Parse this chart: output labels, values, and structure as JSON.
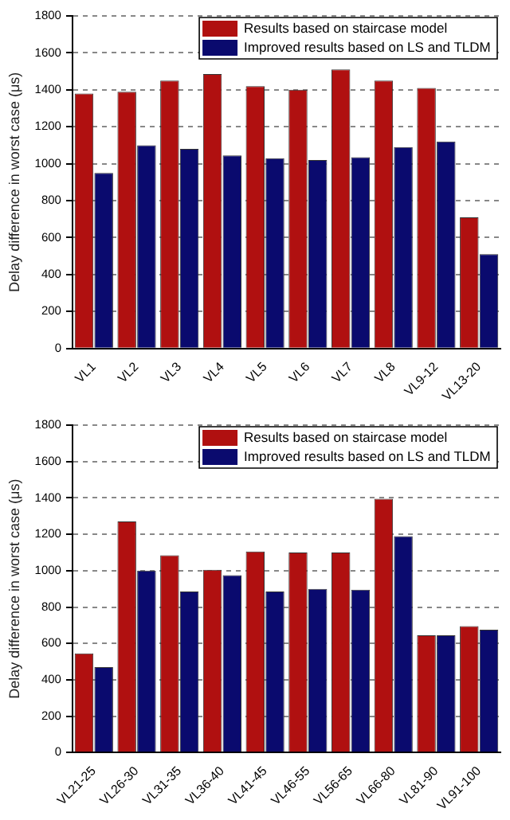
{
  "chart_data": [
    {
      "type": "bar",
      "ylabel": "Delay difference in worst case (μs)",
      "categories": [
        "VL1",
        "VL2",
        "VL3",
        "VL4",
        "VL5",
        "VL6",
        "VL7",
        "VL8",
        "VL9-12",
        "VL13-20"
      ],
      "series": [
        {
          "name": "Results based on staircase model",
          "color": "#b01010",
          "values": [
            1380,
            1390,
            1450,
            1485,
            1420,
            1400,
            1510,
            1450,
            1410,
            710
          ]
        },
        {
          "name": "Improved results based on LS and TLDM",
          "color": "#0a0a6e",
          "values": [
            950,
            1100,
            1080,
            1045,
            1030,
            1020,
            1035,
            1090,
            1120,
            510
          ]
        }
      ],
      "ylim": [
        0,
        1800
      ],
      "yticks": [
        0,
        200,
        400,
        600,
        800,
        1000,
        1200,
        1400,
        1600,
        1800
      ],
      "grid": "y",
      "legend": "top right"
    },
    {
      "type": "bar",
      "ylabel": "Delay difference in worst case (μs)",
      "categories": [
        "VL21-25",
        "VL26-30",
        "VL31-35",
        "VL36-40",
        "VL41-45",
        "VL46-55",
        "VL56-65",
        "VL66-80",
        "VL81-90",
        "VL91-100"
      ],
      "series": [
        {
          "name": "Results based on staircase model",
          "color": "#b01010",
          "values": [
            545,
            1270,
            1085,
            1005,
            1105,
            1100,
            1100,
            1395,
            645,
            695
          ]
        },
        {
          "name": "Improved results based on LS and TLDM",
          "color": "#0a0a6e",
          "values": [
            470,
            1000,
            885,
            975,
            885,
            900,
            895,
            1190,
            645,
            675
          ]
        }
      ],
      "ylim": [
        0,
        1800
      ],
      "yticks": [
        0,
        200,
        400,
        600,
        800,
        1000,
        1200,
        1400,
        1600,
        1800
      ],
      "grid": "y",
      "legend": "top right"
    }
  ]
}
